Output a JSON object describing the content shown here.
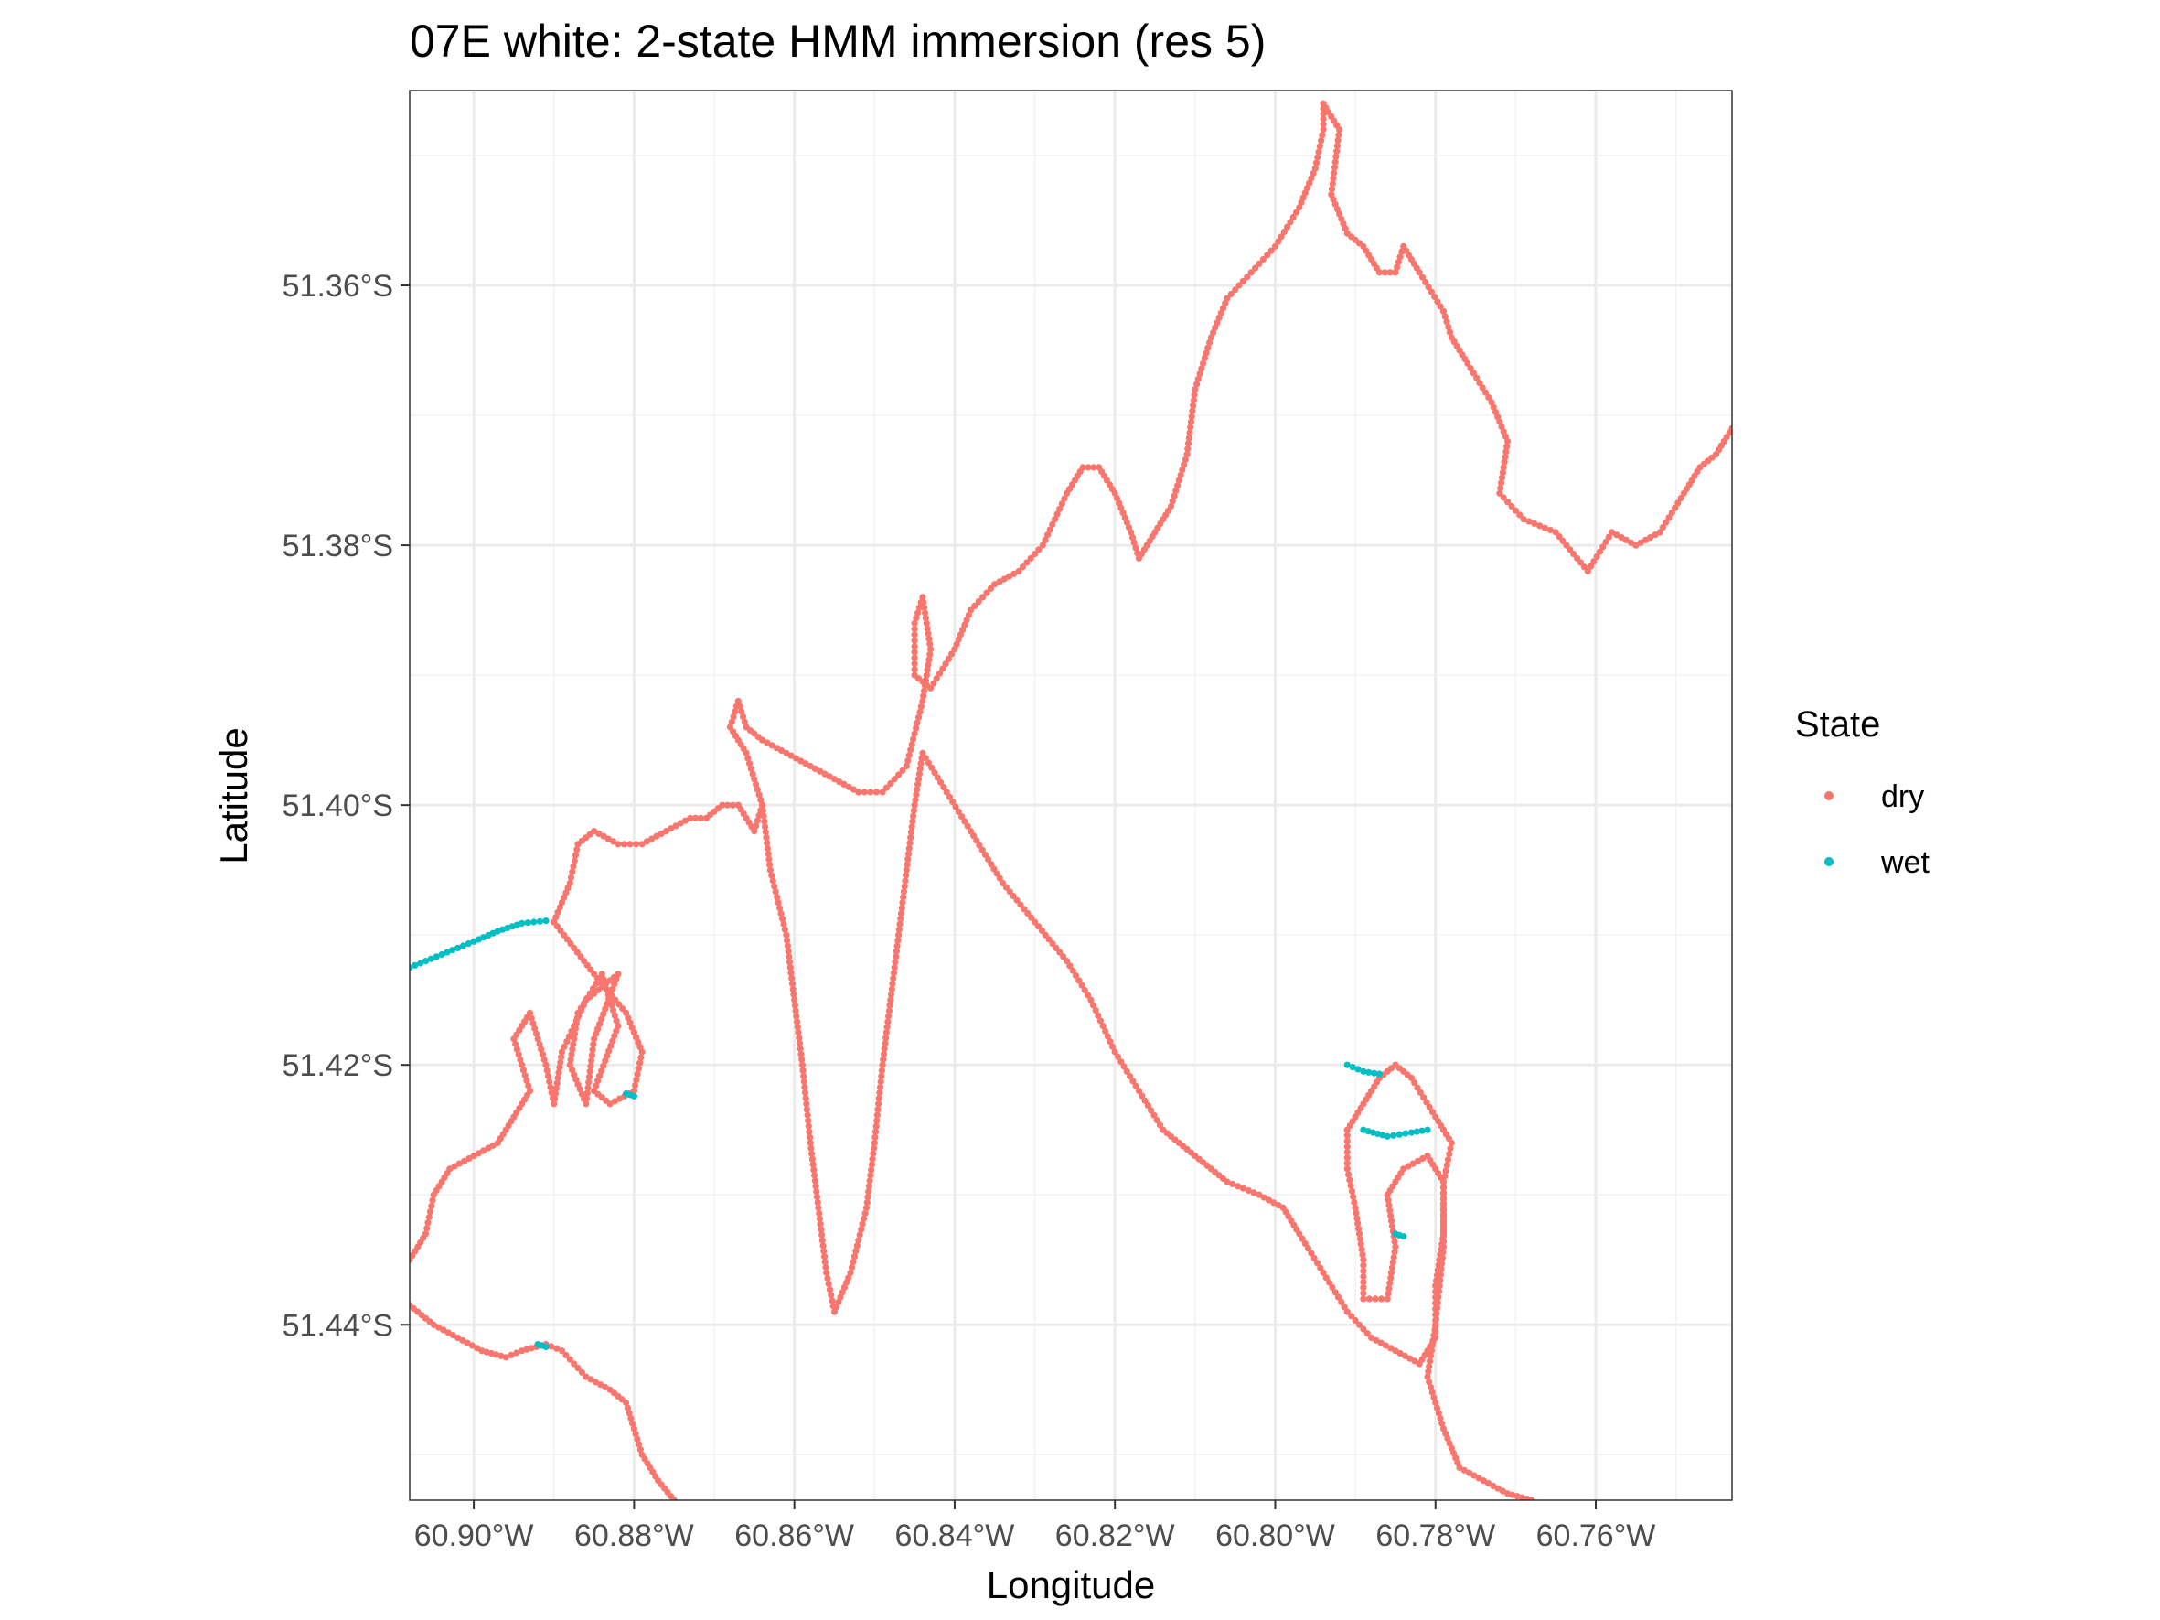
{
  "chart_data": {
    "type": "scatter",
    "title": "07E white: 2-state HMM immersion (res 5)",
    "xlabel": "Longitude",
    "ylabel": "Latitude",
    "xlim": [
      -60.908,
      -60.743
    ],
    "ylim": [
      -51.4535,
      -51.345
    ],
    "x_ticks": [
      {
        "value": -60.9,
        "label": "60.90°W"
      },
      {
        "value": -60.88,
        "label": "60.88°W"
      },
      {
        "value": -60.86,
        "label": "60.86°W"
      },
      {
        "value": -60.84,
        "label": "60.84°W"
      },
      {
        "value": -60.82,
        "label": "60.82°W"
      },
      {
        "value": -60.8,
        "label": "60.80°W"
      },
      {
        "value": -60.78,
        "label": "60.78°W"
      },
      {
        "value": -60.76,
        "label": "60.76°W"
      }
    ],
    "y_ticks": [
      {
        "value": -51.36,
        "label": "51.36°S"
      },
      {
        "value": -51.38,
        "label": "51.38°S"
      },
      {
        "value": -51.4,
        "label": "51.40°S"
      },
      {
        "value": -51.42,
        "label": "51.42°S"
      },
      {
        "value": -51.44,
        "label": "51.44°S"
      }
    ],
    "grid": true,
    "legend": {
      "title": "State",
      "position": "right",
      "entries": [
        {
          "label": "dry",
          "color": "#F8766D"
        },
        {
          "label": "wet",
          "color": "#00BFC4"
        }
      ]
    },
    "path_color": "#000000",
    "series": [
      {
        "name": "dry",
        "color": "#F8766D",
        "segments": [
          [
            [
              -60.89,
              -51.409
            ],
            [
              -60.885,
              -51.413
            ],
            [
              -60.881,
              -51.416
            ],
            [
              -60.879,
              -51.419
            ],
            [
              -60.88,
              -51.422
            ],
            [
              -60.883,
              -51.423
            ],
            [
              -60.885,
              -51.422
            ],
            [
              -60.882,
              -51.417
            ],
            [
              -60.884,
              -51.413
            ],
            [
              -60.887,
              -51.416
            ],
            [
              -60.888,
              -51.42
            ],
            [
              -60.886,
              -51.423
            ],
            [
              -60.885,
              -51.418
            ],
            [
              -60.882,
              -51.413
            ],
            [
              -60.886,
              -51.415
            ],
            [
              -60.889,
              -51.419
            ],
            [
              -60.89,
              -51.423
            ],
            [
              -60.891,
              -51.42
            ],
            [
              -60.893,
              -51.416
            ],
            [
              -60.895,
              -51.418
            ],
            [
              -60.893,
              -51.422
            ],
            [
              -60.895,
              -51.424
            ],
            [
              -60.897,
              -51.426
            ],
            [
              -60.9,
              -51.427
            ],
            [
              -60.903,
              -51.428
            ],
            [
              -60.905,
              -51.43
            ],
            [
              -60.906,
              -51.433
            ],
            [
              -60.908,
              -51.435
            ]
          ],
          [
            [
              -60.89,
              -51.409
            ],
            [
              -60.888,
              -51.406
            ],
            [
              -60.887,
              -51.403
            ],
            [
              -60.885,
              -51.402
            ],
            [
              -60.882,
              -51.403
            ],
            [
              -60.879,
              -51.403
            ],
            [
              -60.876,
              -51.402
            ],
            [
              -60.873,
              -51.401
            ],
            [
              -60.871,
              -51.401
            ],
            [
              -60.869,
              -51.4
            ],
            [
              -60.867,
              -51.4
            ],
            [
              -60.865,
              -51.402
            ],
            [
              -60.864,
              -51.4
            ],
            [
              -60.866,
              -51.396
            ],
            [
              -60.868,
              -51.394
            ],
            [
              -60.867,
              -51.392
            ],
            [
              -60.866,
              -51.394
            ],
            [
              -60.864,
              -51.395
            ],
            [
              -60.861,
              -51.396
            ],
            [
              -60.858,
              -51.397
            ],
            [
              -60.855,
              -51.398
            ],
            [
              -60.852,
              -51.399
            ],
            [
              -60.849,
              -51.399
            ],
            [
              -60.846,
              -51.397
            ],
            [
              -60.844,
              -51.392
            ],
            [
              -60.843,
              -51.388
            ],
            [
              -60.844,
              -51.384
            ],
            [
              -60.845,
              -51.386
            ],
            [
              -60.845,
              -51.39
            ],
            [
              -60.843,
              -51.391
            ],
            [
              -60.84,
              -51.388
            ],
            [
              -60.838,
              -51.385
            ],
            [
              -60.835,
              -51.383
            ],
            [
              -60.832,
              -51.382
            ],
            [
              -60.829,
              -51.38
            ],
            [
              -60.826,
              -51.376
            ],
            [
              -60.824,
              -51.374
            ],
            [
              -60.822,
              -51.374
            ],
            [
              -60.82,
              -51.376
            ],
            [
              -60.818,
              -51.379
            ],
            [
              -60.817,
              -51.381
            ],
            [
              -60.815,
              -51.379
            ],
            [
              -60.813,
              -51.377
            ],
            [
              -60.811,
              -51.373
            ],
            [
              -60.81,
              -51.368
            ],
            [
              -60.808,
              -51.364
            ],
            [
              -60.806,
              -51.361
            ],
            [
              -60.803,
              -51.359
            ],
            [
              -60.8,
              -51.357
            ],
            [
              -60.797,
              -51.354
            ],
            [
              -60.795,
              -51.351
            ],
            [
              -60.794,
              -51.348
            ],
            [
              -60.794,
              -51.346
            ],
            [
              -60.792,
              -51.348
            ],
            [
              -60.793,
              -51.353
            ],
            [
              -60.791,
              -51.356
            ],
            [
              -60.789,
              -51.357
            ],
            [
              -60.787,
              -51.359
            ],
            [
              -60.785,
              -51.359
            ],
            [
              -60.784,
              -51.357
            ],
            [
              -60.782,
              -51.359
            ],
            [
              -60.779,
              -51.362
            ],
            [
              -60.778,
              -51.364
            ],
            [
              -60.776,
              -51.366
            ],
            [
              -60.773,
              -51.369
            ],
            [
              -60.771,
              -51.372
            ],
            [
              -60.772,
              -51.376
            ],
            [
              -60.769,
              -51.378
            ],
            [
              -60.765,
              -51.379
            ],
            [
              -60.761,
              -51.382
            ],
            [
              -60.758,
              -51.379
            ],
            [
              -60.755,
              -51.38
            ],
            [
              -60.752,
              -51.379
            ],
            [
              -60.749,
              -51.376
            ],
            [
              -60.747,
              -51.374
            ],
            [
              -60.745,
              -51.373
            ],
            [
              -60.743,
              -51.371
            ]
          ],
          [
            [
              -60.864,
              -51.4
            ],
            [
              -60.863,
              -51.405
            ],
            [
              -60.861,
              -51.41
            ],
            [
              -60.86,
              -51.415
            ],
            [
              -60.859,
              -51.42
            ],
            [
              -60.858,
              -51.426
            ],
            [
              -60.857,
              -51.431
            ],
            [
              -60.856,
              -51.436
            ],
            [
              -60.855,
              -51.439
            ],
            [
              -60.853,
              -51.436
            ],
            [
              -60.851,
              -51.431
            ],
            [
              -60.85,
              -51.426
            ],
            [
              -60.849,
              -51.42
            ],
            [
              -60.848,
              -51.415
            ],
            [
              -60.847,
              -51.41
            ],
            [
              -60.846,
              -51.405
            ],
            [
              -60.845,
              -51.4
            ],
            [
              -60.844,
              -51.396
            ],
            [
              -60.841,
              -51.399
            ],
            [
              -60.838,
              -51.402
            ],
            [
              -60.834,
              -51.406
            ],
            [
              -60.83,
              -51.409
            ],
            [
              -60.826,
              -51.412
            ],
            [
              -60.823,
              -51.415
            ],
            [
              -60.82,
              -51.419
            ],
            [
              -60.817,
              -51.422
            ],
            [
              -60.814,
              -51.425
            ],
            [
              -60.81,
              -51.427
            ],
            [
              -60.806,
              -51.429
            ],
            [
              -60.802,
              -51.43
            ],
            [
              -60.799,
              -51.431
            ],
            [
              -60.797,
              -51.433
            ],
            [
              -60.794,
              -51.436
            ],
            [
              -60.791,
              -51.439
            ],
            [
              -60.788,
              -51.441
            ],
            [
              -60.785,
              -51.442
            ],
            [
              -60.782,
              -51.443
            ],
            [
              -60.78,
              -51.441
            ],
            [
              -60.78,
              -51.437
            ],
            [
              -60.779,
              -51.433
            ],
            [
              -60.779,
              -51.429
            ],
            [
              -60.778,
              -51.426
            ],
            [
              -60.78,
              -51.424
            ],
            [
              -60.783,
              -51.421
            ],
            [
              -60.785,
              -51.42
            ],
            [
              -60.787,
              -51.421
            ],
            [
              -60.789,
              -51.423
            ],
            [
              -60.791,
              -51.425
            ],
            [
              -60.791,
              -51.428
            ],
            [
              -60.79,
              -51.431
            ],
            [
              -60.789,
              -51.435
            ],
            [
              -60.789,
              -51.438
            ],
            [
              -60.786,
              -51.438
            ],
            [
              -60.785,
              -51.434
            ],
            [
              -60.786,
              -51.43
            ],
            [
              -60.784,
              -51.428
            ],
            [
              -60.781,
              -51.427
            ],
            [
              -60.779,
              -51.429
            ],
            [
              -60.779,
              -51.434
            ],
            [
              -60.78,
              -51.44
            ],
            [
              -60.781,
              -51.444
            ],
            [
              -60.779,
              -51.448
            ],
            [
              -60.777,
              -51.451
            ],
            [
              -60.774,
              -51.452
            ],
            [
              -60.771,
              -51.453
            ],
            [
              -60.768,
              -51.4535
            ]
          ],
          [
            [
              -60.908,
              -51.4385
            ],
            [
              -60.905,
              -51.44
            ],
            [
              -60.902,
              -51.441
            ],
            [
              -60.899,
              -51.442
            ],
            [
              -60.896,
              -51.4425
            ],
            [
              -60.894,
              -51.442
            ],
            [
              -60.891,
              -51.4415
            ],
            [
              -60.889,
              -51.442
            ],
            [
              -60.886,
              -51.444
            ],
            [
              -60.883,
              -51.445
            ],
            [
              -60.881,
              -51.446
            ],
            [
              -60.88,
              -51.448
            ],
            [
              -60.879,
              -51.45
            ],
            [
              -60.877,
              -51.452
            ],
            [
              -60.875,
              -51.4535
            ]
          ]
        ]
      },
      {
        "name": "wet",
        "color": "#00BFC4",
        "segments": [
          [
            [
              -60.908,
              -51.4125
            ],
            [
              -60.904,
              -51.4115
            ],
            [
              -60.9,
              -51.4105
            ],
            [
              -60.897,
              -51.4097
            ],
            [
              -60.894,
              -51.4091
            ],
            [
              -60.891,
              -51.4089
            ]
          ],
          [
            [
              -60.881,
              -51.4222
            ],
            [
              -60.88,
              -51.4224
            ]
          ],
          [
            [
              -60.791,
              -51.42
            ],
            [
              -60.789,
              -51.4205
            ],
            [
              -60.787,
              -51.4207
            ]
          ],
          [
            [
              -60.789,
              -51.425
            ],
            [
              -60.786,
              -51.4255
            ],
            [
              -60.783,
              -51.4252
            ],
            [
              -60.781,
              -51.425
            ]
          ],
          [
            [
              -60.785,
              -51.433
            ],
            [
              -60.784,
              -51.4332
            ]
          ],
          [
            [
              -60.892,
              -51.4415
            ],
            [
              -60.891,
              -51.4417
            ]
          ]
        ]
      }
    ]
  }
}
